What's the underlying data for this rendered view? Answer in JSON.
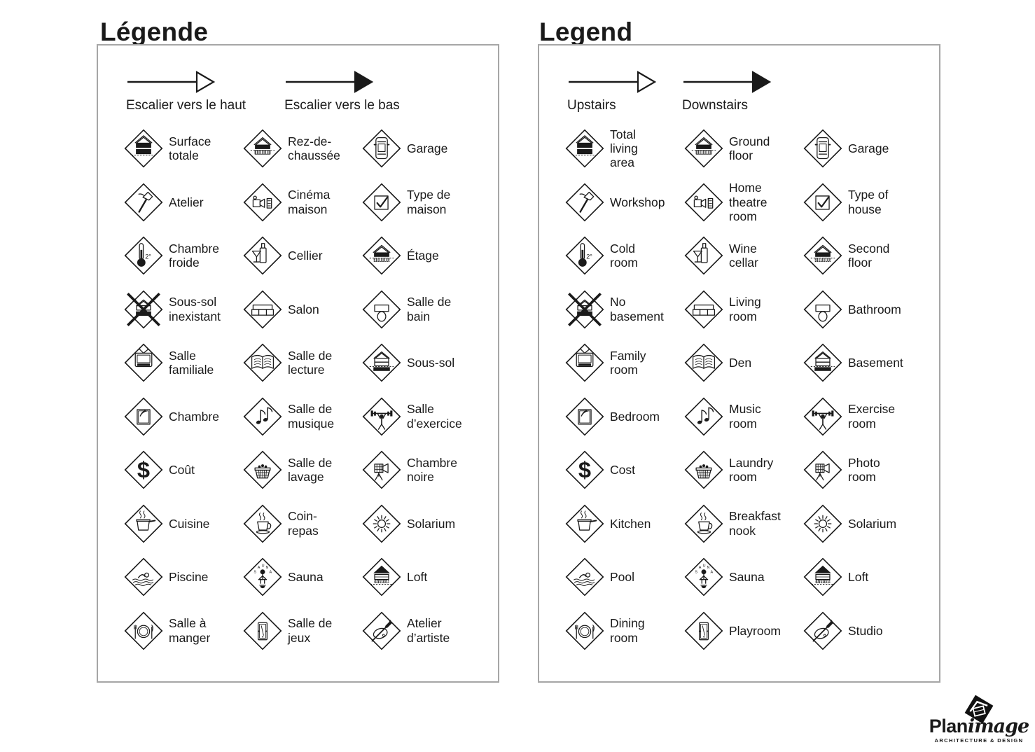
{
  "colors": {
    "ink": "#1a1a1a",
    "panel_border": "#a6a6a6",
    "background": "#ffffff"
  },
  "panels": [
    {
      "id": "fr",
      "title": "Légende",
      "arrows": [
        {
          "label": "Escalier vers le haut",
          "style": "outline",
          "direction": "up"
        },
        {
          "label": "Escalier vers le bas",
          "style": "filled",
          "direction": "down"
        }
      ],
      "items": [
        {
          "icon": "total-living-area",
          "label": "Surface\ntotale"
        },
        {
          "icon": "ground-floor",
          "label": "Rez-de-\nchaussée"
        },
        {
          "icon": "garage",
          "label": "Garage"
        },
        {
          "icon": "workshop",
          "label": "Atelier"
        },
        {
          "icon": "home-theatre",
          "label": "Cinéma\nmaison"
        },
        {
          "icon": "type-of-house",
          "label": "Type de\nmaison"
        },
        {
          "icon": "cold-room",
          "label": "Chambre\nfroide"
        },
        {
          "icon": "wine-cellar",
          "label": "Cellier"
        },
        {
          "icon": "second-floor",
          "label": "Étage"
        },
        {
          "icon": "no-basement",
          "label": "Sous-sol\ninexistant"
        },
        {
          "icon": "living-room",
          "label": "Salon"
        },
        {
          "icon": "bathroom",
          "label": "Salle de\nbain"
        },
        {
          "icon": "family-room",
          "label": "Salle\nfamiliale"
        },
        {
          "icon": "den",
          "label": "Salle de\nlecture"
        },
        {
          "icon": "basement",
          "label": "Sous-sol"
        },
        {
          "icon": "bedroom",
          "label": "Chambre"
        },
        {
          "icon": "music-room",
          "label": "Salle de\nmusique"
        },
        {
          "icon": "exercise-room",
          "label": "Salle\nd’exercice"
        },
        {
          "icon": "cost",
          "label": "Coût"
        },
        {
          "icon": "laundry-room",
          "label": "Salle de\nlavage"
        },
        {
          "icon": "photo-room",
          "label": "Chambre\nnoire"
        },
        {
          "icon": "kitchen",
          "label": "Cuisine"
        },
        {
          "icon": "breakfast-nook",
          "label": "Coin-\nrepas"
        },
        {
          "icon": "solarium",
          "label": "Solarium"
        },
        {
          "icon": "pool",
          "label": "Piscine"
        },
        {
          "icon": "sauna",
          "label": "Sauna"
        },
        {
          "icon": "loft",
          "label": "Loft"
        },
        {
          "icon": "dining-room",
          "label": "Salle à\nmanger"
        },
        {
          "icon": "playroom",
          "label": "Salle de\njeux"
        },
        {
          "icon": "studio",
          "label": "Atelier\nd’artiste"
        }
      ]
    },
    {
      "id": "en",
      "title": "Legend",
      "arrows": [
        {
          "label": "Upstairs",
          "style": "outline",
          "direction": "up"
        },
        {
          "label": "Downstairs",
          "style": "filled",
          "direction": "down"
        }
      ],
      "items": [
        {
          "icon": "total-living-area",
          "label": "Total\nliving\narea"
        },
        {
          "icon": "ground-floor",
          "label": "Ground\nfloor"
        },
        {
          "icon": "garage",
          "label": "Garage"
        },
        {
          "icon": "workshop",
          "label": "Workshop"
        },
        {
          "icon": "home-theatre",
          "label": "Home\ntheatre\nroom"
        },
        {
          "icon": "type-of-house",
          "label": "Type of\nhouse"
        },
        {
          "icon": "cold-room",
          "label": "Cold\nroom"
        },
        {
          "icon": "wine-cellar",
          "label": "Wine\ncellar"
        },
        {
          "icon": "second-floor",
          "label": "Second\nfloor"
        },
        {
          "icon": "no-basement",
          "label": "No\nbasement"
        },
        {
          "icon": "living-room",
          "label": "Living\nroom"
        },
        {
          "icon": "bathroom",
          "label": "Bathroom"
        },
        {
          "icon": "family-room",
          "label": "Family\nroom"
        },
        {
          "icon": "den",
          "label": "Den"
        },
        {
          "icon": "basement",
          "label": "Basement"
        },
        {
          "icon": "bedroom",
          "label": "Bedroom"
        },
        {
          "icon": "music-room",
          "label": "Music\nroom"
        },
        {
          "icon": "exercise-room",
          "label": "Exercise\nroom"
        },
        {
          "icon": "cost",
          "label": "Cost"
        },
        {
          "icon": "laundry-room",
          "label": "Laundry\nroom"
        },
        {
          "icon": "photo-room",
          "label": "Photo\nroom"
        },
        {
          "icon": "kitchen",
          "label": "Kitchen"
        },
        {
          "icon": "breakfast-nook",
          "label": "Breakfast\nnook"
        },
        {
          "icon": "solarium",
          "label": "Solarium"
        },
        {
          "icon": "pool",
          "label": "Pool"
        },
        {
          "icon": "sauna",
          "label": "Sauna"
        },
        {
          "icon": "loft",
          "label": "Loft"
        },
        {
          "icon": "dining-room",
          "label": "Dining\nroom"
        },
        {
          "icon": "playroom",
          "label": "Playroom"
        },
        {
          "icon": "studio",
          "label": "Studio"
        }
      ]
    }
  ],
  "logo": {
    "plan": "Plan",
    "image": "image",
    "tagline": "ARCHITECTURE & DESIGN"
  }
}
